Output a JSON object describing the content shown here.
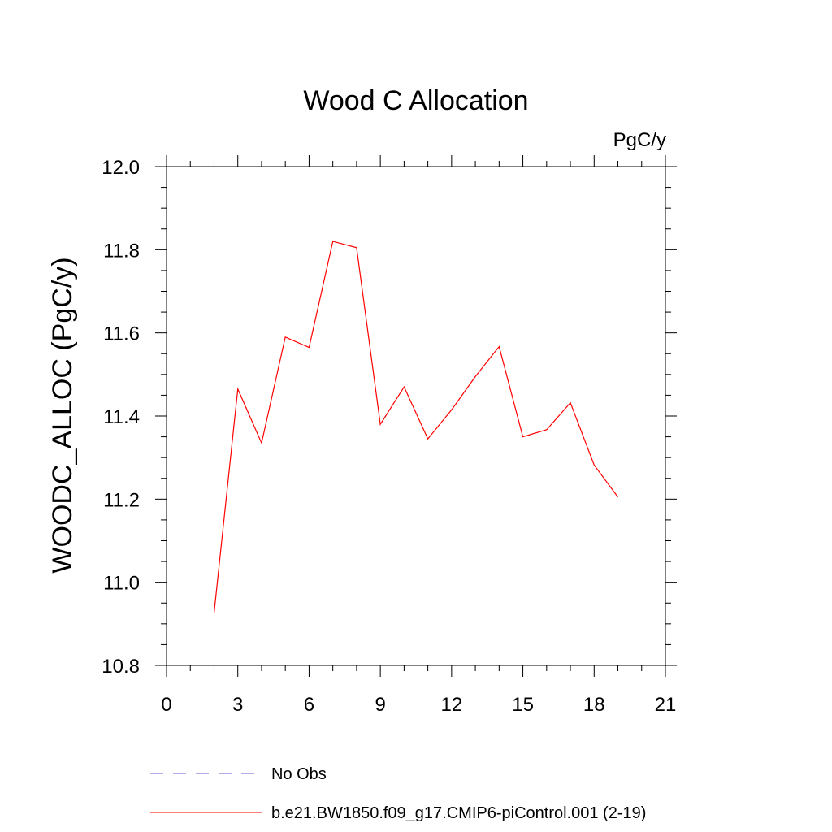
{
  "chart_data": {
    "type": "line",
    "title": "Wood C Allocation",
    "units": "PgC/y",
    "ylabel": "WOODC_ALLOC  (PgC/y)",
    "xlabel": "",
    "xlim": [
      0,
      21
    ],
    "ylim": [
      10.8,
      12.0
    ],
    "x_ticks": [
      0,
      3,
      6,
      9,
      12,
      15,
      18,
      21
    ],
    "x_tick_labels": [
      "0",
      "3",
      "6",
      "9",
      "12",
      "15",
      "18",
      "21"
    ],
    "y_ticks": [
      10.8,
      11.0,
      11.2,
      11.4,
      11.6,
      11.8,
      12.0
    ],
    "y_tick_labels": [
      "10.8",
      "11.0",
      "11.2",
      "11.4",
      "11.6",
      "11.8",
      "12.0"
    ],
    "grid": false,
    "legend_position": "bottom",
    "legend": [
      {
        "label": "No Obs",
        "color": "#6a5acd",
        "dash": "dashed"
      },
      {
        "label": "b.e21.BW1850.f09_g17.CMIP6-piControl.001 (2-19)",
        "color": "#ff0000",
        "dash": "solid"
      }
    ],
    "series": [
      {
        "name": "b.e21.BW1850.f09_g17.CMIP6-piControl.001 (2-19)",
        "color": "#ff0000",
        "x": [
          2,
          3,
          4,
          5,
          6,
          7,
          8,
          9,
          10,
          11,
          12,
          13,
          14,
          15,
          16,
          17,
          18,
          19
        ],
        "y": [
          10.925,
          11.465,
          11.335,
          11.59,
          11.565,
          11.82,
          11.805,
          11.38,
          11.47,
          11.345,
          11.415,
          11.495,
          11.567,
          11.35,
          11.367,
          11.432,
          11.282,
          11.205
        ]
      }
    ]
  }
}
